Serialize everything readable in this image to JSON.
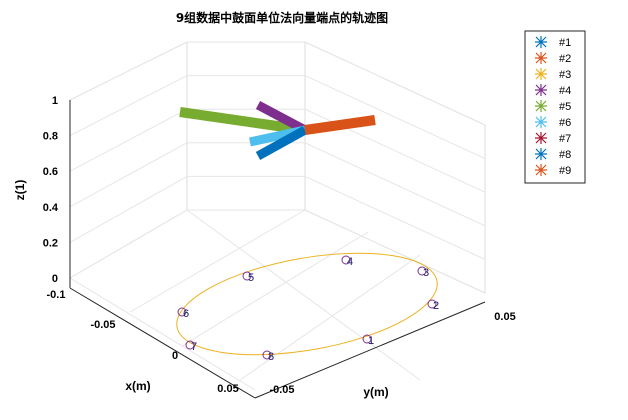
{
  "chart_data": {
    "type": "3d-line-scatter",
    "title": "9组数据中鼓面单位法向量端点的轨迹图",
    "xlabel": "x(m)",
    "ylabel": "y(m)",
    "zlabel": "z(1)",
    "xlim": [
      -0.1,
      0.05
    ],
    "ylim": [
      -0.05,
      0.05
    ],
    "zlim": [
      0,
      1
    ],
    "x_ticks": [
      "-0.1",
      "-0.05",
      "0",
      "0.05"
    ],
    "y_ticks": [
      "-0.05",
      "0.05"
    ],
    "z_ticks": [
      "0",
      "0.2",
      "0.4",
      "0.6",
      "0.8",
      "1"
    ],
    "legend": {
      "position": "top-right",
      "entries": [
        "#1",
        "#2",
        "#3",
        "#4",
        "#5",
        "#6",
        "#7",
        "#8",
        "#9"
      ]
    },
    "series": [
      {
        "name": "#1",
        "color": "#0072BD"
      },
      {
        "name": "#2",
        "color": "#D95319"
      },
      {
        "name": "#3",
        "color": "#EDB120"
      },
      {
        "name": "#4",
        "color": "#7E2F8E"
      },
      {
        "name": "#5",
        "color": "#77AC30"
      },
      {
        "name": "#6",
        "color": "#4DBEEE"
      },
      {
        "name": "#7",
        "color": "#A2142F"
      },
      {
        "name": "#8",
        "color": "#0072BD"
      },
      {
        "name": "#9",
        "color": "#D95319"
      }
    ],
    "circle_labels": [
      "1",
      "2",
      "3",
      "4",
      "5",
      "6",
      "7",
      "8"
    ],
    "circle_color": "#EDB120",
    "marker_color": "#7E2F8E",
    "grid": true
  }
}
